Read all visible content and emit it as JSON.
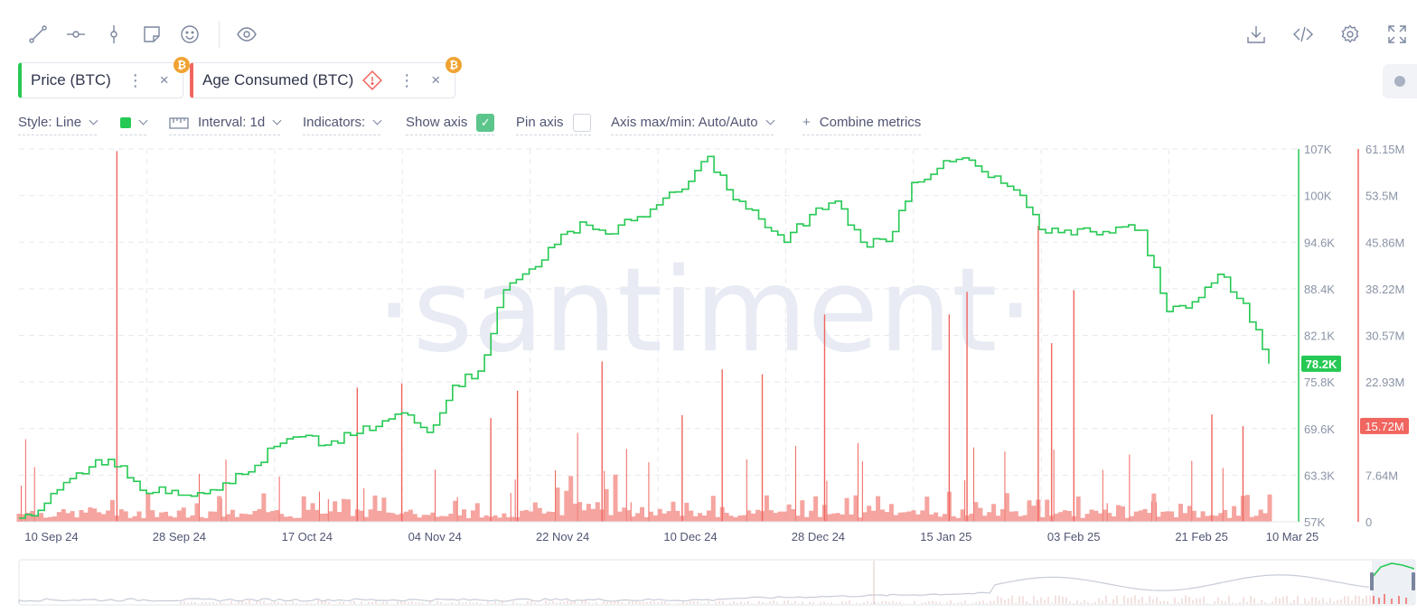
{
  "toolbar": {
    "left_tools": [
      {
        "name": "line-drawing-icon"
      },
      {
        "name": "horizontal-ray-icon"
      },
      {
        "name": "vertical-line-icon"
      },
      {
        "name": "note-icon"
      },
      {
        "name": "emoji-icon"
      }
    ],
    "visibility": {
      "name": "eye-icon"
    },
    "right_tools": [
      {
        "name": "download-icon"
      },
      {
        "name": "embed-code-icon"
      },
      {
        "name": "settings-gear-icon"
      },
      {
        "name": "fullscreen-icon"
      }
    ]
  },
  "metrics": [
    {
      "label": "Price (BTC)",
      "color": "#26c953",
      "badge": "₿"
    },
    {
      "label": "Age Consumed (BTC)",
      "color": "#f0655f",
      "badge": "₿",
      "warning": true
    }
  ],
  "settings": {
    "style": "Style: Line",
    "interval": "Interval: 1d",
    "indicators": "Indicators:",
    "show_axis": "Show axis",
    "show_axis_checked": true,
    "pin_axis": "Pin axis",
    "pin_axis_checked": false,
    "axis_maxmin": "Axis max/min: Auto/Auto",
    "combine": "Combine metrics"
  },
  "watermark": "·santiment·",
  "chart_data": {
    "type": "line",
    "x_dates": [
      "10 Sep 24",
      "28 Sep 24",
      "17 Oct 24",
      "04 Nov 24",
      "22 Nov 24",
      "10 Dec 24",
      "28 Dec 24",
      "15 Jan 25",
      "03 Feb 25",
      "21 Feb 25",
      "10 Mar 25"
    ],
    "price_axis": {
      "ticks": [
        "107K",
        "100K",
        "94.6K",
        "88.4K",
        "82.1K",
        "75.8K",
        "69.6K",
        "63.3K",
        "57K"
      ],
      "range": [
        57000,
        107000
      ],
      "color": "#26c953"
    },
    "age_axis": {
      "ticks": [
        "61.15M",
        "53.5M",
        "45.86M",
        "38.22M",
        "30.57M",
        "22.93M",
        "15.29M",
        "7.64M",
        "0"
      ],
      "range": [
        0,
        61150000
      ],
      "color": "#f0655f"
    },
    "current_price_label": "78.2K",
    "current_age_label": "15.72M",
    "series": [
      {
        "name": "Price (BTC)",
        "color": "#26c953",
        "values_by_week": [
          57500,
          59500,
          62800,
          65300,
          64500,
          60800,
          61200,
          60900,
          62200,
          63700,
          67100,
          68400,
          67300,
          68600,
          69800,
          71600,
          69000,
          75300,
          77200,
          88100,
          90900,
          94200,
          97200,
          95600,
          97400,
          99500,
          101600,
          106000,
          100200,
          97600,
          94500,
          98200,
          100000,
          94500,
          94600,
          102500,
          104400,
          105800,
          103200,
          101500,
          96200,
          96100,
          95900,
          96500,
          96100,
          85200,
          86500,
          90200,
          86300,
          78200
        ]
      },
      {
        "name": "Age Consumed (BTC)",
        "color": "#f0655f",
        "spikes": [
          {
            "date_index": 22,
            "value": 60800000
          },
          {
            "date_index": 76,
            "value": 22000000
          },
          {
            "date_index": 86,
            "value": 22700000
          },
          {
            "date_index": 106,
            "value": 17000000
          },
          {
            "date_index": 112,
            "value": 21500000
          },
          {
            "date_index": 131,
            "value": 26300000
          },
          {
            "date_index": 149,
            "value": 17500000
          },
          {
            "date_index": 158,
            "value": 25000000
          },
          {
            "date_index": 167,
            "value": 24200000
          },
          {
            "date_index": 181,
            "value": 34000000
          },
          {
            "date_index": 209,
            "value": 34000000
          },
          {
            "date_index": 213,
            "value": 37700000
          },
          {
            "date_index": 229,
            "value": 48500000
          },
          {
            "date_index": 232,
            "value": 29300000
          },
          {
            "date_index": 237,
            "value": 38000000
          },
          {
            "date_index": 268,
            "value": 17600000
          },
          {
            "date_index": 275,
            "value": 15700000
          }
        ]
      }
    ],
    "x_range": [
      "10 Sep 24",
      "10 Mar 25"
    ],
    "grid": true,
    "legend": "top-left"
  }
}
